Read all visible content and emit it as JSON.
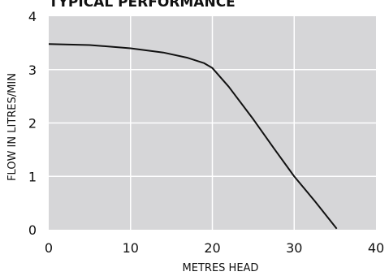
{
  "chart_data": {
    "type": "line",
    "title": "TYPICAL PERFORMANCE",
    "xlabel": "METRES HEAD",
    "ylabel": "FLOW IN LITRES/MIN",
    "xlim": [
      0,
      40
    ],
    "ylim": [
      0,
      4
    ],
    "x_ticks": [
      "0",
      "10",
      "20",
      "30",
      "40"
    ],
    "y_ticks": [
      "0",
      "1",
      "2",
      "3",
      "4"
    ],
    "grid": true,
    "plot_background": "#d6d6d8",
    "grid_color": "#ffffff",
    "line_color": "#111111",
    "series": [
      {
        "x": [
          0,
          5,
          10,
          14,
          17,
          19,
          20,
          22,
          25,
          27.5,
          30,
          32.5,
          35.2
        ],
        "y": [
          3.48,
          3.46,
          3.4,
          3.32,
          3.22,
          3.12,
          3.03,
          2.68,
          2.07,
          1.53,
          1.0,
          0.54,
          0.02
        ]
      }
    ]
  }
}
